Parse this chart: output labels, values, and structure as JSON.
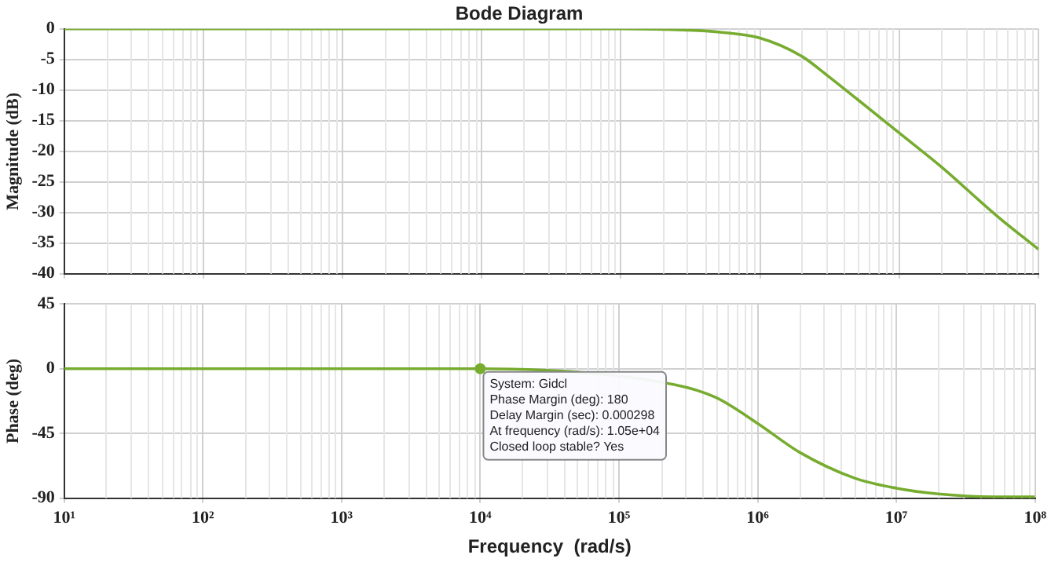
{
  "chart_data": [
    {
      "type": "line",
      "title": "Bode Diagram",
      "ylabel": "Magnitude (dB)",
      "x": [
        10,
        100000,
        300000,
        500000,
        1000000,
        2000000,
        3000000,
        5000000,
        10000000,
        20000000,
        50000000,
        100000000
      ],
      "series": [
        {
          "color": "#77ac30",
          "values": [
            0,
            0,
            -0.2,
            -0.5,
            -1.5,
            -4.5,
            -7.5,
            -11.5,
            -17,
            -22.5,
            -30.5,
            -36
          ]
        }
      ],
      "xlim": [
        10,
        100000000
      ],
      "xticks": [
        {
          "value": 10,
          "label": null
        },
        {
          "value": 100,
          "label": null
        },
        {
          "value": 1000,
          "label": null
        },
        {
          "value": 10000,
          "label": null
        },
        {
          "value": 100000,
          "label": null
        },
        {
          "value": 1000000,
          "label": null
        },
        {
          "value": 10000000,
          "label": null
        },
        {
          "value": 100000000,
          "label": null
        }
      ],
      "ylim": [
        -40,
        0
      ],
      "yticks": [
        -40,
        -35,
        -30,
        -25,
        -20,
        -15,
        -10,
        -5,
        0
      ],
      "log": "x",
      "grid": true,
      "tick_labels": "y",
      "marker": "none",
      "line_style": "solid"
    },
    {
      "type": "line",
      "xlabel": "Frequency  (rad/s)",
      "ylabel": "Phase (deg)",
      "x": [
        10,
        10000,
        250000,
        500000,
        1000000,
        2000000,
        5000000,
        10000000,
        20000000,
        50000000,
        100000000
      ],
      "series": [
        {
          "color": "#77ac30",
          "values": [
            0,
            0,
            -11,
            -20,
            -38,
            -58,
            -76,
            -83,
            -87,
            -89,
            -89
          ]
        }
      ],
      "xlim": [
        10,
        100000000
      ],
      "xticks": [
        {
          "value": 10,
          "label": "10¹"
        },
        {
          "value": 100,
          "label": "10²"
        },
        {
          "value": 1000,
          "label": "10³"
        },
        {
          "value": 10000,
          "label": "10⁴"
        },
        {
          "value": 100000,
          "label": "10⁵"
        },
        {
          "value": 1000000,
          "label": "10⁶"
        },
        {
          "value": 10000000,
          "label": "10⁷"
        },
        {
          "value": 100000000,
          "label": "10⁸"
        }
      ],
      "ylim": [
        -90,
        45
      ],
      "yticks": [
        -90,
        -45,
        0,
        45
      ],
      "log": "x",
      "grid": true,
      "marker": "none",
      "line_style": "solid",
      "annotations": [
        {
          "text": "System: Gidcl\nPhase Margin (deg): 180\nDelay Margin (sec): 0.000298\nAt frequency (rad/s): 1.05e+04\nClosed loop stable? Yes",
          "x": 10000,
          "y": 0
        }
      ]
    }
  ]
}
